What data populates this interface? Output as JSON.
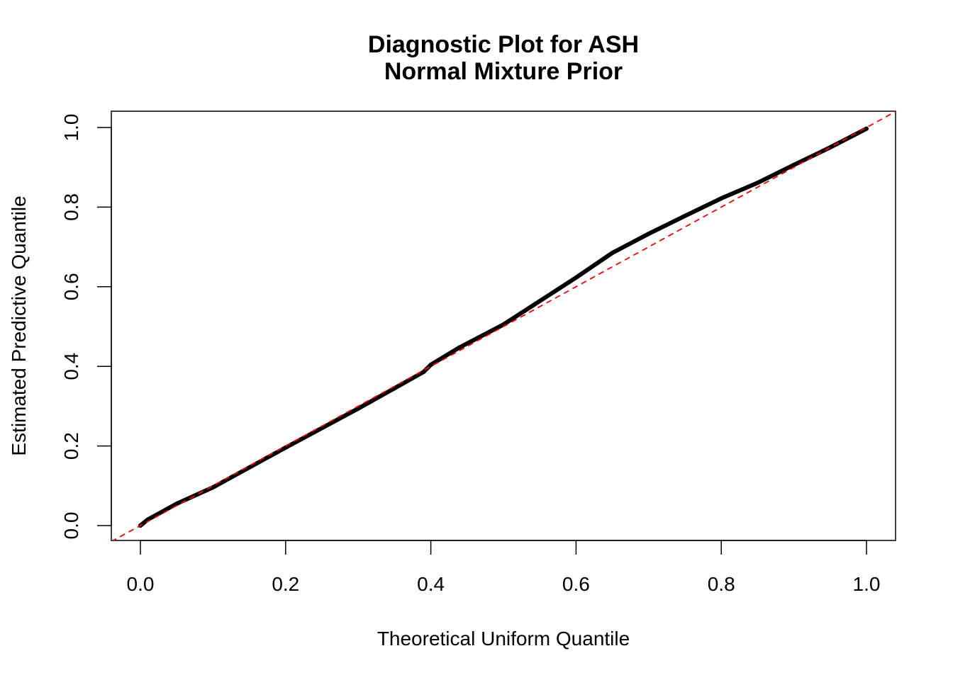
{
  "chart_data": {
    "type": "line",
    "title": "Diagnostic Plot for ASH",
    "subtitle": "Normal Mixture Prior",
    "xlabel": "Theoretical Uniform Quantile",
    "ylabel": "Estimated Predictive Quantile",
    "xlim": [
      -0.04,
      1.04
    ],
    "ylim": [
      -0.04,
      1.04
    ],
    "xticks": [
      "0.0",
      "0.2",
      "0.4",
      "0.6",
      "0.8",
      "1.0"
    ],
    "yticks": [
      "0.0",
      "0.2",
      "0.4",
      "0.6",
      "0.8",
      "1.0"
    ],
    "grid": false,
    "series": [
      {
        "color": "#000000",
        "x": [
          0,
          0.01,
          0.05,
          0.1,
          0.2,
          0.3,
          0.35,
          0.39,
          0.4,
          0.44,
          0.5,
          0.55,
          0.6,
          0.65,
          0.7,
          0.75,
          0.8,
          0.85,
          0.9,
          0.95,
          1.0
        ],
        "y": [
          0,
          0.015,
          0.055,
          0.096,
          0.196,
          0.294,
          0.345,
          0.386,
          0.404,
          0.448,
          0.505,
          0.564,
          0.623,
          0.685,
          0.733,
          0.778,
          0.822,
          0.861,
          0.906,
          0.95,
          0.997
        ]
      }
    ],
    "reference_line": {
      "intercept": 0,
      "slope": 1,
      "color": "#ff0000",
      "style": "dashed"
    }
  }
}
